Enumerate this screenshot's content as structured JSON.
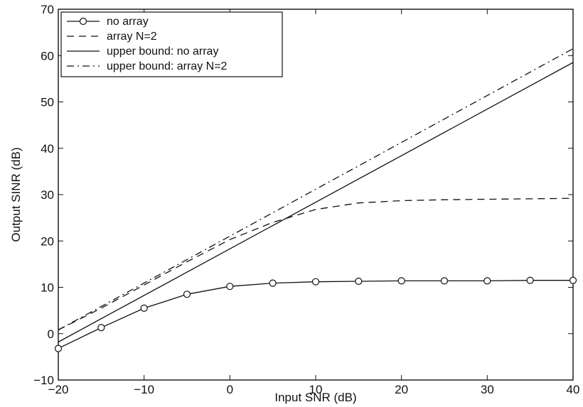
{
  "chart_data": {
    "type": "line",
    "title": "",
    "xlabel": "Input SNR (dB)",
    "ylabel": "Output SINR (dB)",
    "xlim": [
      -20,
      40
    ],
    "ylim": [
      -10,
      70
    ],
    "xticks": [
      -20,
      -10,
      0,
      10,
      20,
      30,
      40
    ],
    "yticks": [
      -10,
      0,
      10,
      20,
      30,
      40,
      50,
      60,
      70
    ],
    "xtick_labels": [
      "−20",
      "−10",
      "0",
      "10",
      "20",
      "30",
      "40"
    ],
    "ytick_labels": [
      "−10",
      "0",
      "10",
      "20",
      "30",
      "40",
      "50",
      "60",
      "70"
    ],
    "grid": false,
    "legend_position": "top-left",
    "series": [
      {
        "name": "no array",
        "style": "solid-circle",
        "x": [
          -20,
          -15,
          -10,
          -5,
          0,
          5,
          10,
          15,
          20,
          25,
          30,
          35,
          40
        ],
        "y": [
          -3.2,
          1.3,
          5.5,
          8.5,
          10.2,
          10.9,
          11.2,
          11.3,
          11.4,
          11.4,
          11.4,
          11.5,
          11.5
        ]
      },
      {
        "name": "array N=2",
        "style": "dashed",
        "x": [
          -20,
          -15,
          -10,
          -5,
          0,
          5,
          10,
          15,
          20,
          25,
          30,
          35,
          40
        ],
        "y": [
          0.8,
          5.5,
          10.5,
          15.5,
          20.3,
          24.0,
          26.8,
          28.2,
          28.7,
          28.9,
          29.0,
          29.1,
          29.2
        ]
      },
      {
        "name": "upper bound: no array",
        "style": "solid",
        "x": [
          -20,
          40
        ],
        "y": [
          -1.8,
          58.5
        ]
      },
      {
        "name": "upper bound: array N=2",
        "style": "dashdot",
        "x": [
          -20,
          40
        ],
        "y": [
          0.8,
          61.5
        ]
      }
    ]
  }
}
